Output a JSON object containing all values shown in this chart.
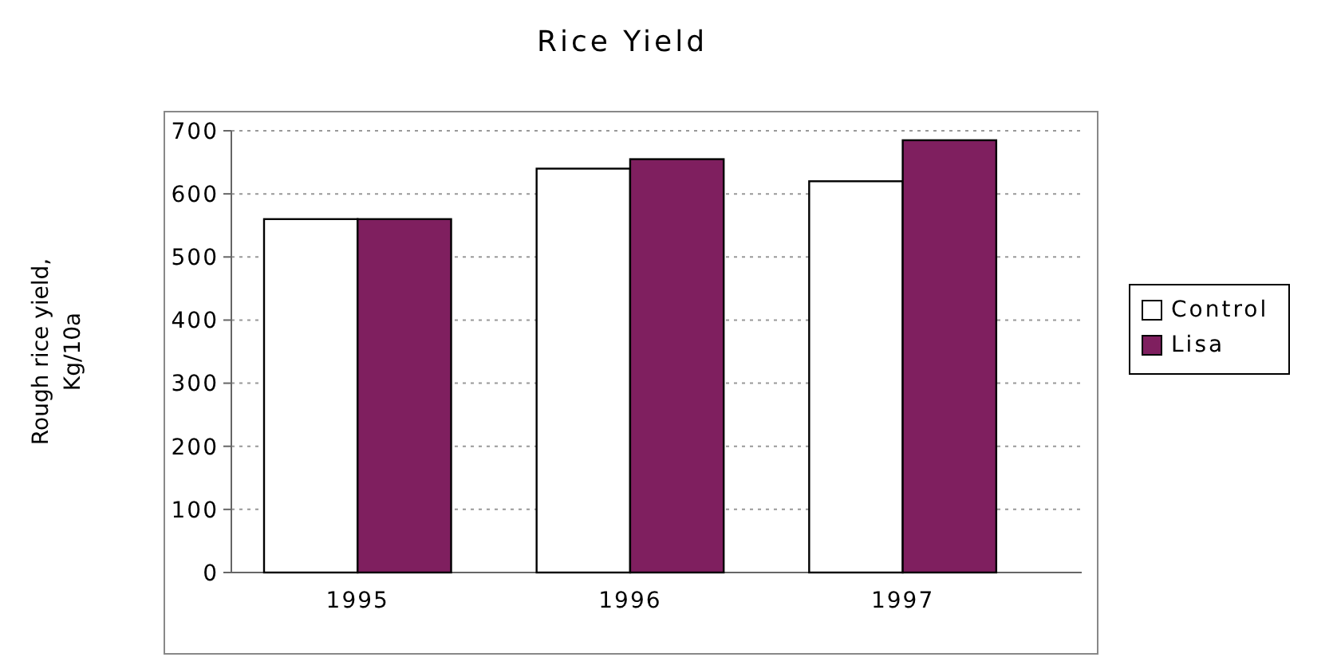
{
  "chart_data": {
    "type": "bar",
    "title": "Rice Yield",
    "ylabel": "Rough rice yield,\nKg/10a",
    "categories": [
      "1995",
      "1996",
      "1997"
    ],
    "series": [
      {
        "name": "Control",
        "color": "#ffffff",
        "values": [
          560,
          640,
          620
        ]
      },
      {
        "name": "Lisa",
        "color": "#7f1f5f",
        "values": [
          560,
          655,
          685
        ]
      }
    ],
    "ylim": [
      0,
      700
    ],
    "yticks": [
      0,
      100,
      200,
      300,
      400,
      500,
      600,
      700
    ],
    "grid": "y",
    "legend": "right"
  }
}
